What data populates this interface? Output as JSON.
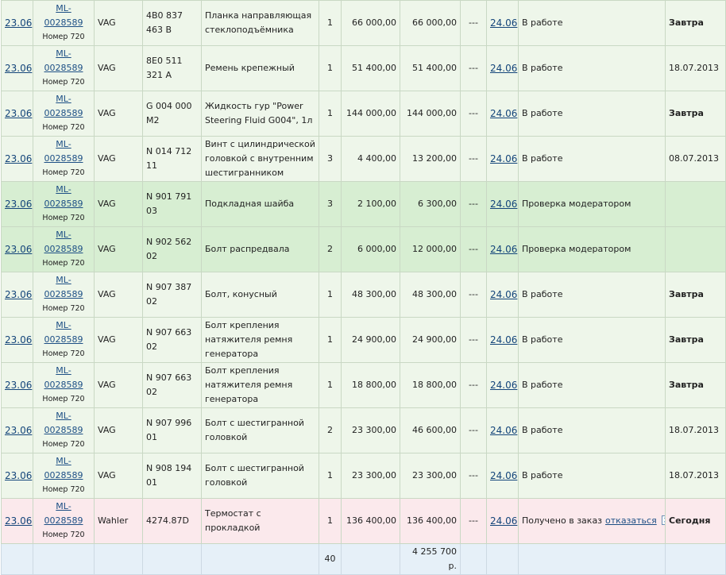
{
  "rows": [
    {
      "date": "23.06",
      "order": "ML-0028589",
      "order_sub": "Номер 720",
      "brand": "VAG",
      "code": "4B0 837 463 B",
      "name": "Планка направляющая стеклоподъёмника",
      "qty": "1",
      "price": "66 000,00",
      "sum": "66 000,00",
      "dash": "---",
      "sdate": "24.06",
      "status": "В работе",
      "due": "Завтра",
      "due_bold": true,
      "state": "work",
      "h": 38
    },
    {
      "date": "23.06",
      "order": "ML-0028589",
      "order_sub": "Номер 720",
      "brand": "VAG",
      "code": "8E0 511 321 A",
      "name": "Ремень крепежный",
      "qty": "1",
      "price": "51 400,00",
      "sum": "51 400,00",
      "dash": "---",
      "sdate": "24.06",
      "status": "В работе",
      "due": "18.07.2013",
      "due_bold": false,
      "state": "work",
      "h": 39
    },
    {
      "date": "23.06",
      "order": "ML-0028589",
      "order_sub": "Номер 720",
      "brand": "VAG",
      "code": "G 004 000 M2",
      "name": "Жидкость гур \"Power Steering Fluid G004\", 1л",
      "qty": "1",
      "price": "144 000,00",
      "sum": "144 000,00",
      "dash": "---",
      "sdate": "24.06",
      "status": "В работе",
      "due": "Завтра",
      "due_bold": true,
      "state": "work",
      "h": 39
    },
    {
      "date": "23.06",
      "order": "ML-0028589",
      "order_sub": "Номер 720",
      "brand": "VAG",
      "code": "N 014 712 11",
      "name": "Винт с цилиндрической головкой с внутренним шестигранником",
      "qty": "3",
      "price": "4 400,00",
      "sum": "13 200,00",
      "dash": "---",
      "sdate": "24.06",
      "status": "В работе",
      "due": "08.07.2013",
      "due_bold": false,
      "state": "work",
      "h": 57
    },
    {
      "date": "23.06",
      "order": "ML-0028589",
      "order_sub": "Номер 720",
      "brand": "VAG",
      "code": "N 901 791 03",
      "name": "Подкладная шайба",
      "qty": "3",
      "price": "2 100,00",
      "sum": "6 300,00",
      "dash": "---",
      "sdate": "24.06",
      "status": "Проверка модератором",
      "due": "",
      "due_bold": false,
      "state": "mod",
      "h": 39
    },
    {
      "date": "23.06",
      "order": "ML-0028589",
      "order_sub": "Номер 720",
      "brand": "VAG",
      "code": "N 902 562 02",
      "name": "Болт распредвала",
      "qty": "2",
      "price": "6 000,00",
      "sum": "12 000,00",
      "dash": "---",
      "sdate": "24.06",
      "status": "Проверка модератором",
      "due": "",
      "due_bold": false,
      "state": "mod",
      "h": 39
    },
    {
      "date": "23.06",
      "order": "ML-0028589",
      "order_sub": "Номер 720",
      "brand": "VAG",
      "code": "N 907 387 02",
      "name": "Болт, конусный",
      "qty": "1",
      "price": "48 300,00",
      "sum": "48 300,00",
      "dash": "---",
      "sdate": "24.06",
      "status": "В работе",
      "due": "Завтра",
      "due_bold": true,
      "state": "work",
      "h": 39
    },
    {
      "date": "23.06",
      "order": "ML-0028589",
      "order_sub": "Номер 720",
      "brand": "VAG",
      "code": "N 907 663 02",
      "name": "Болт крепления натяжителя ремня генератора",
      "qty": "1",
      "price": "24 900,00",
      "sum": "24 900,00",
      "dash": "---",
      "sdate": "24.06",
      "status": "В работе",
      "due": "Завтра",
      "due_bold": true,
      "state": "work",
      "h": 57
    },
    {
      "date": "23.06",
      "order": "ML-0028589",
      "order_sub": "Номер 720",
      "brand": "VAG",
      "code": "N 907 663 02",
      "name": "Болт крепления натяжителя ремня генератора",
      "qty": "1",
      "price": "18 800,00",
      "sum": "18 800,00",
      "dash": "---",
      "sdate": "24.06",
      "status": "В работе",
      "due": "Завтра",
      "due_bold": true,
      "state": "work",
      "h": 57
    },
    {
      "date": "23.06",
      "order": "ML-0028589",
      "order_sub": "Номер 720",
      "brand": "VAG",
      "code": "N 907 996 01",
      "name": "Болт с шестигранной головкой",
      "qty": "2",
      "price": "23 300,00",
      "sum": "46 600,00",
      "dash": "---",
      "sdate": "24.06",
      "status": "В работе",
      "due": "18.07.2013",
      "due_bold": false,
      "state": "work",
      "h": 39
    },
    {
      "date": "23.06",
      "order": "ML-0028589",
      "order_sub": "Номер 720",
      "brand": "VAG",
      "code": "N 908 194 01",
      "name": "Болт с шестигранной головкой",
      "qty": "1",
      "price": "23 300,00",
      "sum": "23 300,00",
      "dash": "---",
      "sdate": "24.06",
      "status": "В работе",
      "due": "18.07.2013",
      "due_bold": false,
      "state": "work",
      "h": 39
    },
    {
      "date": "23.06",
      "order": "ML-0028589",
      "order_sub": "Номер 720",
      "brand": "Wahler",
      "code": "4274.87D",
      "name": "Термостат с прокладкой",
      "qty": "1",
      "price": "136 400,00",
      "sum": "136 400,00",
      "dash": "---",
      "sdate": "24.06",
      "status": "Получено в заказ",
      "cancel": "отказаться",
      "due": "Сегодня",
      "due_bold": true,
      "state": "recv",
      "h": 39
    }
  ],
  "total": {
    "qty": "40",
    "sum": "4 255 700 р."
  }
}
